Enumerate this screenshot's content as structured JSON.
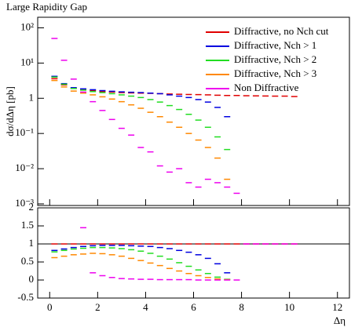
{
  "chart_data": [
    {
      "type": "line",
      "title": "Large Rapidity Gap",
      "ylabel": "dσ/dΔη [pb]",
      "log_y": true,
      "legend": "upper right",
      "xlim": [
        -0.5,
        12.5
      ],
      "ylim": [
        0.0009,
        200
      ],
      "yticks": [
        {
          "value": 100,
          "label": "10²"
        },
        {
          "value": 10,
          "label": "10¹"
        },
        1,
        {
          "value": 0.1,
          "label": "10⁻¹"
        },
        {
          "value": 0.01,
          "label": "10⁻²"
        },
        {
          "value": 0.001,
          "label": "10⁻³"
        }
      ],
      "x": [
        0.2,
        0.6,
        1.0,
        1.4,
        1.8,
        2.2,
        2.6,
        3.0,
        3.4,
        3.8,
        4.2,
        4.6,
        5.0,
        5.4,
        5.8,
        6.2,
        6.6,
        7.0,
        7.4,
        7.8,
        8.2,
        8.6,
        9.0,
        9.4,
        9.8,
        10.2
      ],
      "series": [
        {
          "name": "Diffractive, no Nch cut",
          "color": "#e00000",
          "values": [
            3.6,
            2.4,
            1.9,
            1.75,
            1.65,
            1.55,
            1.5,
            1.45,
            1.42,
            1.4,
            1.38,
            1.35,
            1.32,
            1.3,
            1.28,
            1.27,
            1.25,
            1.22,
            1.2,
            1.2,
            1.18,
            1.17,
            1.16,
            1.15,
            1.15,
            1.12
          ]
        },
        {
          "name": "Diffractive, Nch > 1",
          "color": "#0000e0",
          "values": [
            4.2,
            2.6,
            2.0,
            1.85,
            1.75,
            1.65,
            1.58,
            1.52,
            1.48,
            1.45,
            1.4,
            1.35,
            1.25,
            1.15,
            1.05,
            0.92,
            0.78,
            0.55,
            0.3,
            null,
            null,
            null,
            null,
            null,
            null,
            null
          ]
        },
        {
          "name": "Diffractive, Nch > 2",
          "color": "#22dd22",
          "values": [
            4.0,
            2.5,
            1.9,
            1.7,
            1.55,
            1.45,
            1.35,
            1.25,
            1.15,
            1.05,
            0.92,
            0.78,
            0.62,
            0.48,
            0.35,
            0.24,
            0.15,
            0.08,
            0.035,
            null,
            null,
            null,
            null,
            null,
            null,
            null
          ]
        },
        {
          "name": "Diffractive, Nch > 3",
          "color": "#ff8800",
          "values": [
            3.2,
            2.1,
            1.6,
            1.4,
            1.25,
            1.1,
            0.95,
            0.8,
            0.65,
            0.52,
            0.4,
            0.3,
            0.21,
            0.15,
            0.1,
            0.065,
            0.04,
            0.02,
            0.005,
            null,
            null,
            null,
            null,
            null,
            null,
            null
          ]
        },
        {
          "name": "Non Diffractive",
          "color": "#ee00ee",
          "values": [
            50,
            12,
            3.5,
            1.5,
            0.8,
            0.45,
            0.25,
            0.14,
            0.09,
            0.04,
            0.03,
            0.012,
            0.008,
            0.01,
            0.004,
            0.003,
            0.005,
            0.004,
            0.003,
            0.002,
            null,
            null,
            null,
            null,
            null,
            null
          ]
        }
      ]
    },
    {
      "type": "line",
      "xlabel": "Δη",
      "reference": 1,
      "xlim": [
        -0.5,
        12.5
      ],
      "xticks": [
        0,
        2,
        4,
        6,
        8,
        10,
        12
      ],
      "ylim": [
        -0.5,
        2
      ],
      "yticks": [
        -0.5,
        0,
        0.5,
        1,
        1.5,
        2
      ],
      "x": [
        0.2,
        0.6,
        1.0,
        1.4,
        1.8,
        2.2,
        2.6,
        3.0,
        3.4,
        3.8,
        4.2,
        4.6,
        5.0,
        5.4,
        5.8,
        6.2,
        6.6,
        7.0,
        7.4,
        7.8,
        8.2,
        8.6,
        9.0,
        9.4,
        9.8,
        10.2
      ],
      "series": [
        {
          "color": "#e00000",
          "values": [
            1,
            1,
            1,
            1,
            1,
            1,
            1,
            1,
            1,
            1,
            1,
            1,
            1,
            1,
            1,
            1,
            1,
            1,
            1,
            1,
            1,
            1,
            1,
            1,
            1,
            1
          ]
        },
        {
          "color": "#0000e0",
          "values": [
            0.82,
            0.86,
            0.9,
            0.93,
            0.95,
            0.96,
            0.96,
            0.96,
            0.95,
            0.94,
            0.93,
            0.9,
            0.87,
            0.82,
            0.77,
            0.7,
            0.6,
            0.45,
            0.2,
            null,
            null,
            null,
            null,
            null,
            null,
            null
          ]
        },
        {
          "color": "#22dd22",
          "values": [
            0.78,
            0.82,
            0.86,
            0.88,
            0.9,
            0.9,
            0.89,
            0.87,
            0.84,
            0.8,
            0.74,
            0.66,
            0.58,
            0.48,
            0.38,
            0.28,
            0.18,
            0.08,
            0.02,
            null,
            null,
            null,
            null,
            null,
            null,
            null
          ]
        },
        {
          "color": "#ff8800",
          "values": [
            0.62,
            0.66,
            0.7,
            0.72,
            0.74,
            0.73,
            0.7,
            0.66,
            0.6,
            0.54,
            0.47,
            0.4,
            0.32,
            0.25,
            0.18,
            0.12,
            0.07,
            0.03,
            0.01,
            null,
            null,
            null,
            null,
            null,
            null,
            null
          ]
        },
        {
          "color": "#ee00ee",
          "values": [
            null,
            null,
            null,
            1.45,
            0.2,
            0.12,
            0.07,
            0.04,
            0.03,
            0.02,
            0.02,
            0.01,
            0.01,
            0.01,
            0.01,
            0,
            0,
            0,
            0,
            0,
            1,
            1,
            1,
            1,
            1,
            1
          ]
        }
      ]
    }
  ]
}
